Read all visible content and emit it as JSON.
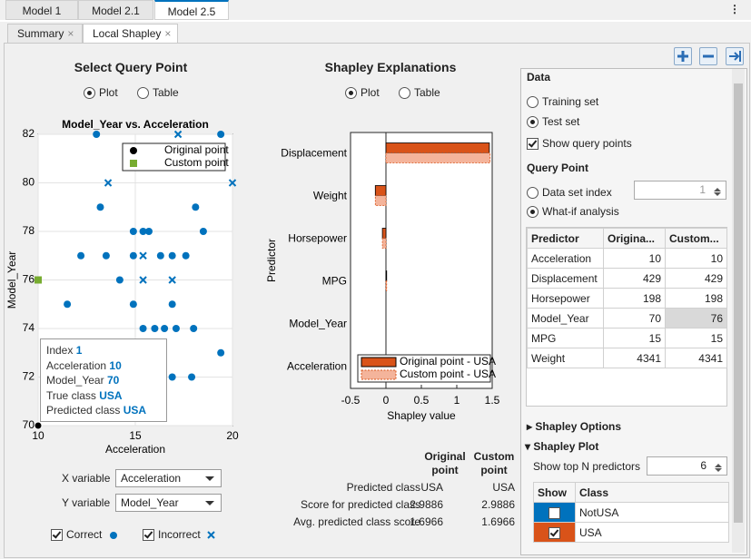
{
  "tabs": [
    "Model 1",
    "Model 2.1",
    "Model 2.5"
  ],
  "subtabs": [
    "Summary",
    "Local Shapley"
  ],
  "query_point_panel": {
    "title": "Select Query Point",
    "view_options": [
      "Plot",
      "Table"
    ],
    "selected_view": "Plot"
  },
  "scatter_chart": {
    "type": "scatter",
    "title": "Model_Year vs. Acceleration",
    "x_label": "Acceleration",
    "y_label": "Model_Year",
    "xlim": [
      10,
      20
    ],
    "ylim": [
      70,
      82
    ],
    "xticks": [
      10,
      15,
      20
    ],
    "yticks": [
      70,
      72,
      74,
      76,
      78,
      80,
      82
    ],
    "grid": true,
    "legend": "upper right",
    "series": [
      {
        "name": "Original point",
        "marker": "circle",
        "color": "#000000",
        "x": [
          10
        ],
        "y": [
          70
        ]
      },
      {
        "name": "Custom point",
        "marker": "square",
        "color": "#77ac30",
        "x": [
          10
        ],
        "y": [
          76
        ]
      }
    ],
    "correct": {
      "marker": "circle",
      "color": "#0072bd",
      "x": [
        13.0,
        19.4,
        13.2,
        18.1,
        14.9,
        15.4,
        15.7,
        18.5,
        12.2,
        13.5,
        14.9,
        16.3,
        16.9,
        17.6,
        14.2,
        11.5,
        14.9,
        16.9,
        15.4,
        16.0,
        16.5,
        17.1,
        18.0,
        19.4,
        16.9,
        17.9
      ],
      "y": [
        82,
        82,
        79,
        79,
        78,
        78,
        78,
        78,
        77,
        77,
        77,
        77,
        77,
        77,
        76,
        75,
        75,
        75,
        74,
        74,
        74,
        74,
        74,
        73,
        72,
        72
      ]
    },
    "incorrect": {
      "marker": "cross",
      "color": "#0072bd",
      "x": [
        13.6,
        17.2,
        20,
        15.4,
        15.4,
        16.9
      ],
      "y": [
        80,
        82,
        80,
        77,
        76,
        76
      ]
    }
  },
  "tooltip": [
    {
      "label": "Index",
      "value": 1
    },
    {
      "label": "Acceleration",
      "value": 10
    },
    {
      "label": "Model_Year",
      "value": 70
    },
    {
      "label": "True class",
      "value": "USA"
    },
    {
      "label": "Predicted class",
      "value": "USA"
    }
  ],
  "axis_selectors": [
    {
      "label": "X variable",
      "value": "Acceleration"
    },
    {
      "label": "Y variable",
      "value": "Model_Year"
    }
  ],
  "point_filters": [
    {
      "label": "Correct",
      "checked": true
    },
    {
      "label": "Incorrect",
      "checked": true
    }
  ],
  "shapley_panel": {
    "title": "Shapley Explanations",
    "view_options": [
      "Plot",
      "Table"
    ],
    "selected_view": "Plot"
  },
  "shapley_chart": {
    "type": "bar",
    "orientation": "horizontal",
    "categories": [
      "Displacement",
      "Weight",
      "Horsepower",
      "MPG",
      "Model_Year",
      "Acceleration"
    ],
    "series": [
      {
        "name": "Original point - USA",
        "color": "#d95319",
        "values": [
          1.46,
          -0.15,
          -0.05,
          0.01,
          0,
          0
        ]
      },
      {
        "name": "Custom point - USA",
        "color": "#f4b49b",
        "values": [
          1.47,
          -0.15,
          -0.05,
          0.01,
          0,
          0
        ]
      }
    ],
    "xlim": [
      -0.5,
      1.5
    ],
    "xticks": [
      -0.5,
      0,
      0.5,
      1,
      1.5
    ],
    "x_label": "Shapley value",
    "y_label": "Predictor",
    "legend": "lower right"
  },
  "prediction_summary": {
    "columns": [
      "Original point",
      "Custom point"
    ],
    "rows": [
      {
        "label": "Predicted class",
        "values": [
          "USA",
          "USA"
        ]
      },
      {
        "label": "Score for predicted class",
        "values": [
          2.9886,
          2.9886
        ]
      },
      {
        "label": "Avg. predicted class score",
        "values": [
          1.6966,
          1.6966
        ]
      }
    ]
  },
  "data_panel": {
    "title": "Data",
    "sources": [
      "Training set",
      "Test set"
    ],
    "selected_source": "Test set",
    "show_query_points": {
      "label": "Show query points",
      "checked": true
    }
  },
  "query_point": {
    "title": "Query Point",
    "options": [
      "Data set index",
      "What-if analysis"
    ],
    "selected_option": "What-if analysis",
    "index": 1,
    "table": {
      "headers": [
        "Predictor",
        "Origina...",
        "Custom..."
      ],
      "rows": [
        [
          "Acceleration",
          10,
          10
        ],
        [
          "Displacement",
          429,
          429
        ],
        [
          "Horsepower",
          198,
          198
        ],
        [
          "Model_Year",
          70,
          76
        ],
        [
          "MPG",
          15,
          15
        ],
        [
          "Weight",
          4341,
          4341
        ]
      ]
    }
  },
  "shapley_options": {
    "title": "Shapley Options"
  },
  "shapley_plot": {
    "title": "Shapley Plot",
    "top_n_label": "Show top N predictors",
    "top_n": 6,
    "class_table": {
      "headers": [
        "Show",
        "Class"
      ],
      "rows": [
        {
          "class": "NotUSA",
          "color": "#0072bd",
          "show": false
        },
        {
          "class": "USA",
          "color": "#d95319",
          "show": true
        }
      ]
    }
  }
}
